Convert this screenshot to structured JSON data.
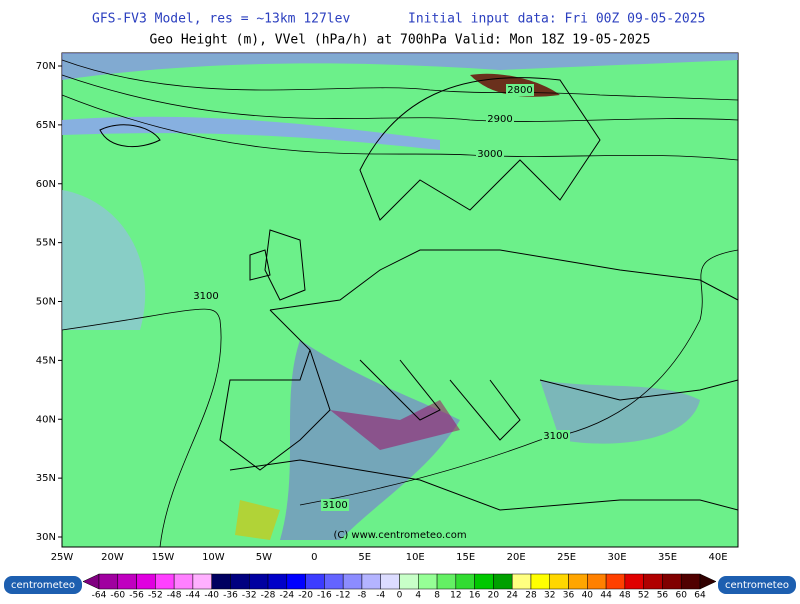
{
  "header": {
    "model": "GFS-FV3 Model, res = ~13km 127lev",
    "init": "Initial input data: Fri 00Z 09-05-2025",
    "field": "Geo Height (m), VVel (hPa/h) at 700hPa  Valid: Mon 18Z 19-05-2025"
  },
  "map": {
    "lat_labels": [
      "70N",
      "65N",
      "60N",
      "55N",
      "50N",
      "45N",
      "40N",
      "35N",
      "30N"
    ],
    "lon_labels": [
      "25W",
      "20W",
      "15W",
      "10W",
      "5W",
      "0",
      "5E",
      "10E",
      "15E",
      "20E",
      "25E",
      "30E",
      "35E",
      "40E"
    ],
    "contour_labels": [
      "2800",
      "2900",
      "3000",
      "3100",
      "3100",
      "3100"
    ],
    "copyright": "(C) www.centrometeo.com"
  },
  "colorbar": {
    "labels": [
      -64,
      -60,
      -56,
      -52,
      -48,
      -44,
      -40,
      -36,
      -32,
      -28,
      -24,
      -20,
      -16,
      -12,
      -8,
      -4,
      0,
      4,
      8,
      12,
      16,
      20,
      24,
      28,
      32,
      36,
      40,
      44,
      48,
      52,
      56,
      60,
      64
    ],
    "colors": [
      "#800080",
      "#a000a0",
      "#c000c0",
      "#e000e0",
      "#ff40ff",
      "#ff80ff",
      "#ffb0ff",
      "#000060",
      "#000080",
      "#0000a0",
      "#0000c8",
      "#0000ff",
      "#3c3cff",
      "#6464ff",
      "#8c8cff",
      "#b4b4ff",
      "#dcdcff",
      "#c8ffc8",
      "#96ff96",
      "#64f064",
      "#32dc32",
      "#00c800",
      "#00a000",
      "#ffff80",
      "#ffff00",
      "#ffd700",
      "#ffa500",
      "#ff8000",
      "#ff4000",
      "#e00000",
      "#b00000",
      "#800000",
      "#500000",
      "#300000"
    ]
  },
  "logo": "centrometeo"
}
